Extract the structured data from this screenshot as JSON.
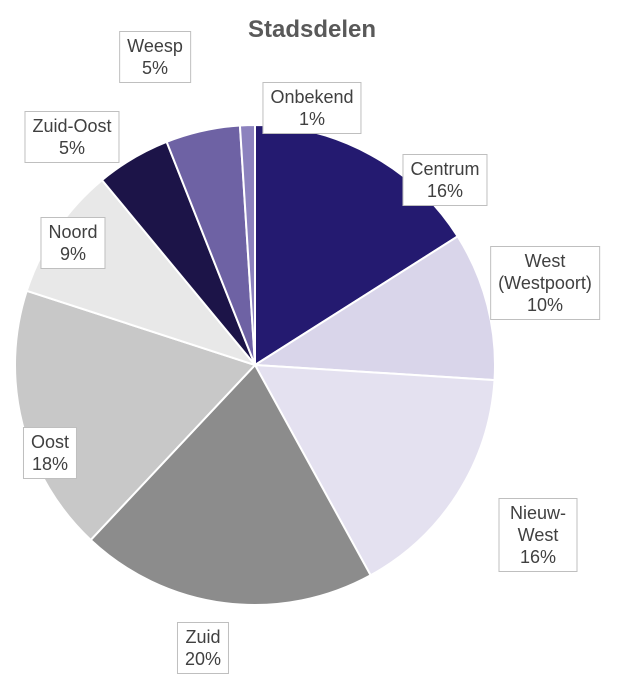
{
  "chart_data": {
    "type": "pie",
    "title": "Stadsdelen",
    "categories": [
      "Centrum",
      "West (Westpoort)",
      "Nieuw-West",
      "Zuid",
      "Oost",
      "Noord",
      "Zuid-Oost",
      "Weesp",
      "Onbekend"
    ],
    "values": [
      16,
      10,
      16,
      20,
      18,
      9,
      5,
      5,
      1
    ],
    "value_labels": [
      "16%",
      "10%",
      "16%",
      "20%",
      "18%",
      "9%",
      "5%",
      "5%",
      "1%"
    ],
    "colors": [
      "#241a70",
      "#d9d5ea",
      "#e4e1f0",
      "#8c8c8c",
      "#c8c8c8",
      "#e8e8e8",
      "#1c1448",
      "#6e62a4",
      "#8c82be"
    ]
  }
}
